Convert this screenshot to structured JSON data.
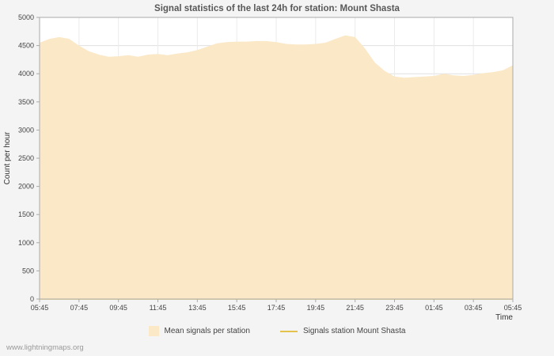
{
  "page": {
    "footer_link": "www.lightningmaps.org"
  },
  "chart_data": {
    "type": "area",
    "title": "Signal statistics of the last 24h for station: Mount Shasta",
    "xlabel": "Time",
    "ylabel": "Count per hour",
    "ylim": [
      0,
      5000
    ],
    "ytick_step": 500,
    "x_hours_range": [
      0,
      24
    ],
    "x_tick_hours": [
      0,
      2,
      4,
      6,
      8,
      10,
      12,
      14,
      16,
      18,
      20,
      22,
      24
    ],
    "x_tick_labels": [
      "05:45",
      "07:45",
      "09:45",
      "11:45",
      "13:45",
      "15:45",
      "17:45",
      "19:45",
      "21:45",
      "23:45",
      "01:45",
      "03:45",
      "05:45"
    ],
    "grid": true,
    "grid_color_h": "#e0e0e0",
    "grid_color_v": "#ebebeb",
    "axis_color": "#aaaaaa",
    "plot_bg": "#ffffff",
    "legend_position": "bottom",
    "series": [
      {
        "name": "Mean signals per station",
        "type": "area",
        "color": "#FBE8C6",
        "x_hours": [
          0,
          0.5,
          1,
          1.5,
          2,
          2.5,
          3,
          3.5,
          4,
          4.5,
          5,
          5.5,
          6,
          6.5,
          7,
          7.5,
          8,
          8.5,
          9,
          9.5,
          10,
          10.5,
          11,
          11.5,
          12,
          12.5,
          13,
          13.5,
          14,
          14.5,
          15,
          15.5,
          16,
          16.5,
          17,
          17.5,
          18,
          18.5,
          19,
          19.5,
          20,
          20.5,
          21,
          21.5,
          22,
          22.5,
          23,
          23.5,
          24
        ],
        "values": [
          4550,
          4620,
          4650,
          4620,
          4500,
          4400,
          4340,
          4300,
          4310,
          4330,
          4300,
          4340,
          4350,
          4330,
          4360,
          4380,
          4420,
          4480,
          4540,
          4560,
          4570,
          4570,
          4580,
          4580,
          4560,
          4530,
          4520,
          4520,
          4530,
          4550,
          4620,
          4680,
          4650,
          4450,
          4200,
          4050,
          3950,
          3930,
          3940,
          3950,
          3960,
          4000,
          3970,
          3960,
          3980,
          4010,
          4030,
          4060,
          4150
        ]
      },
      {
        "name": "Signals station Mount Shasta",
        "type": "line",
        "color": "#E3C34B",
        "x_hours": [
          0,
          24
        ],
        "values": [
          0,
          0
        ]
      }
    ]
  }
}
